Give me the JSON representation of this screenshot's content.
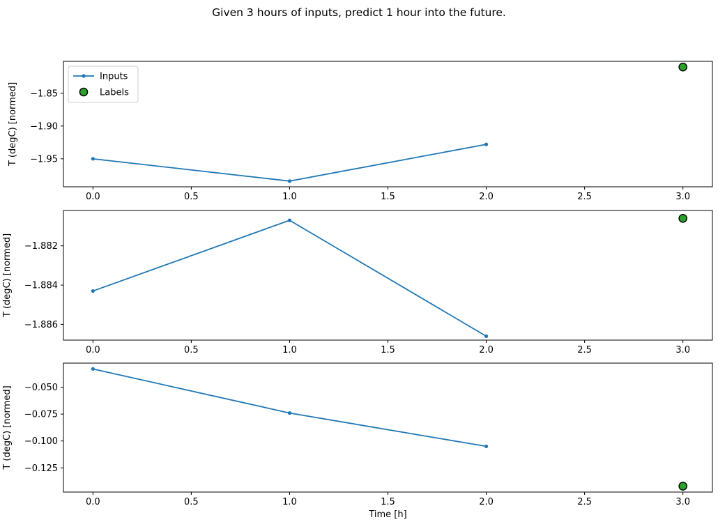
{
  "figure": {
    "title": "Given 3 hours of inputs, predict 1 hour into the future."
  },
  "colors": {
    "inputs_line": "#1f77b4",
    "labels_marker_fill": "#2ca02c",
    "labels_marker_edge": "#000000",
    "axis": "#000000",
    "text": "#000000",
    "legend_border": "#cccccc",
    "background": "#ffffff"
  },
  "legend": {
    "position": "upper left",
    "items": [
      {
        "label": "Inputs",
        "marker": "line-with-dot"
      },
      {
        "label": "Labels",
        "marker": "circle"
      }
    ]
  },
  "axes_text": {
    "xlabel": "Time [h]",
    "ylabel": "T (degC) [normed]"
  },
  "chart_data": [
    {
      "type": "line",
      "title": "",
      "xlabel": "",
      "ylabel": "T (degC) [normed]",
      "xlim": [
        -0.15,
        3.15
      ],
      "ylim": [
        -1.9927,
        -1.8013
      ],
      "xticks": [
        0.0,
        0.5,
        1.0,
        1.5,
        2.0,
        2.5,
        3.0
      ],
      "xtick_labels": [
        "0.0",
        "0.5",
        "1.0",
        "1.5",
        "2.0",
        "2.5",
        "3.0"
      ],
      "yticks": [
        -1.85,
        -1.9,
        -1.95
      ],
      "ytick_labels": [
        "−1.85",
        "−1.90",
        "−1.95"
      ],
      "grid": false,
      "legend": true,
      "series": [
        {
          "name": "Inputs",
          "type": "line",
          "x": [
            0,
            1,
            2
          ],
          "y": [
            -1.95,
            -1.984,
            -1.928
          ]
        },
        {
          "name": "Labels",
          "type": "scatter",
          "x": [
            3
          ],
          "y": [
            -1.81
          ]
        }
      ]
    },
    {
      "type": "line",
      "title": "",
      "xlabel": "",
      "ylabel": "T (degC) [normed]",
      "xlim": [
        -0.15,
        3.15
      ],
      "ylim": [
        -1.8868,
        -1.8802
      ],
      "xticks": [
        0.0,
        0.5,
        1.0,
        1.5,
        2.0,
        2.5,
        3.0
      ],
      "xtick_labels": [
        "0.0",
        "0.5",
        "1.0",
        "1.5",
        "2.0",
        "2.5",
        "3.0"
      ],
      "yticks": [
        -1.882,
        -1.884,
        -1.886
      ],
      "ytick_labels": [
        "−1.882",
        "−1.884",
        "−1.886"
      ],
      "grid": false,
      "legend": false,
      "series": [
        {
          "name": "Inputs",
          "type": "line",
          "x": [
            0,
            1,
            2
          ],
          "y": [
            -1.8843,
            -1.8807,
            -1.8866
          ]
        },
        {
          "name": "Labels",
          "type": "scatter",
          "x": [
            3
          ],
          "y": [
            -1.8806
          ]
        }
      ]
    },
    {
      "type": "line",
      "title": "",
      "xlabel": "Time [h]",
      "ylabel": "T (degC) [normed]",
      "xlim": [
        -0.15,
        3.15
      ],
      "ylim": [
        -0.1475,
        -0.0276
      ],
      "xticks": [
        0.0,
        0.5,
        1.0,
        1.5,
        2.0,
        2.5,
        3.0
      ],
      "xtick_labels": [
        "0.0",
        "0.5",
        "1.0",
        "1.5",
        "2.0",
        "2.5",
        "3.0"
      ],
      "yticks": [
        -0.05,
        -0.075,
        -0.1,
        -0.125
      ],
      "ytick_labels": [
        "−0.050",
        "−0.075",
        "−0.100",
        "−0.125"
      ],
      "grid": false,
      "legend": false,
      "series": [
        {
          "name": "Inputs",
          "type": "line",
          "x": [
            0,
            1,
            2
          ],
          "y": [
            -0.033,
            -0.074,
            -0.105
          ]
        },
        {
          "name": "Labels",
          "type": "scatter",
          "x": [
            3
          ],
          "y": [
            -0.142
          ]
        }
      ]
    }
  ]
}
